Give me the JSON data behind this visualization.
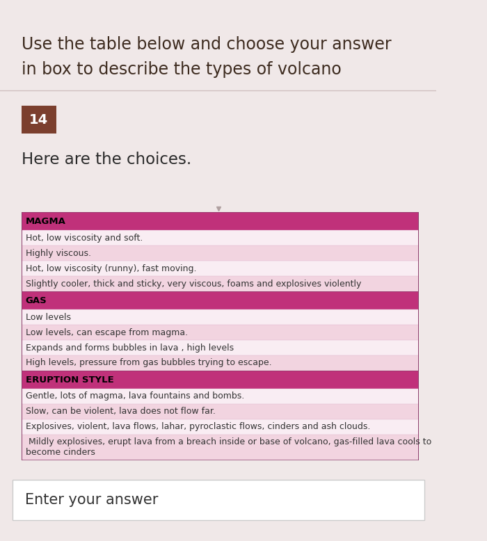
{
  "title_line1": "Use the table below and choose your answer",
  "title_line2": "in box to describe the types of volcano",
  "question_number": "14",
  "subtitle": "Here are the choices.",
  "bg_color": "#f0e8e8",
  "title_bg": "#f0e8e8",
  "question_number_bg": "#7b3f2e",
  "question_number_color": "#ffffff",
  "table_header_bg": "#c0317a",
  "table_row_alt1": "#f2d4e0",
  "table_row_alt2": "#f9edf3",
  "table_header_text_color": "#000000",
  "table_row_text_color": "#333333",
  "table_border_color": "#8b3a6b",
  "answer_box_bg": "#ffffff",
  "answer_box_border": "#cccccc",
  "answer_text_color": "#333333",
  "rows": [
    {
      "type": "header",
      "text": "MAGMA"
    },
    {
      "type": "data",
      "text": "Hot, low viscosity and soft.",
      "alt": false
    },
    {
      "type": "data",
      "text": "Highly viscous.",
      "alt": true
    },
    {
      "type": "data",
      "text": "Hot, low viscosity (runny), fast moving.",
      "alt": false
    },
    {
      "type": "data",
      "text": "Slightly cooler, thick and sticky, very viscous, foams and explosives violently",
      "alt": true
    },
    {
      "type": "header",
      "text": "GAS"
    },
    {
      "type": "data",
      "text": "Low levels",
      "alt": false
    },
    {
      "type": "data",
      "text": "Low levels, can escape from magma.",
      "alt": true
    },
    {
      "type": "data",
      "text": "Expands and forms bubbles in lava , high levels",
      "alt": false
    },
    {
      "type": "data",
      "text": "High levels, pressure from gas bubbles trying to escape.",
      "alt": true
    },
    {
      "type": "header",
      "text": "ERUPTION STYLE"
    },
    {
      "type": "data",
      "text": "Gentle, lots of magma, lava fountains and bombs.",
      "alt": false
    },
    {
      "type": "data",
      "text": "Slow, can be violent, lava does not flow far.",
      "alt": true
    },
    {
      "type": "data",
      "text": "Explosives, violent, lava flows, lahar, pyroclastic flows, cinders and ash clouds.",
      "alt": false
    },
    {
      "type": "data",
      "text": " Mildly explosives, erupt lava from a breach inside or base of volcano, gas-filled lava cools to\nbecome cinders",
      "alt": true
    }
  ]
}
